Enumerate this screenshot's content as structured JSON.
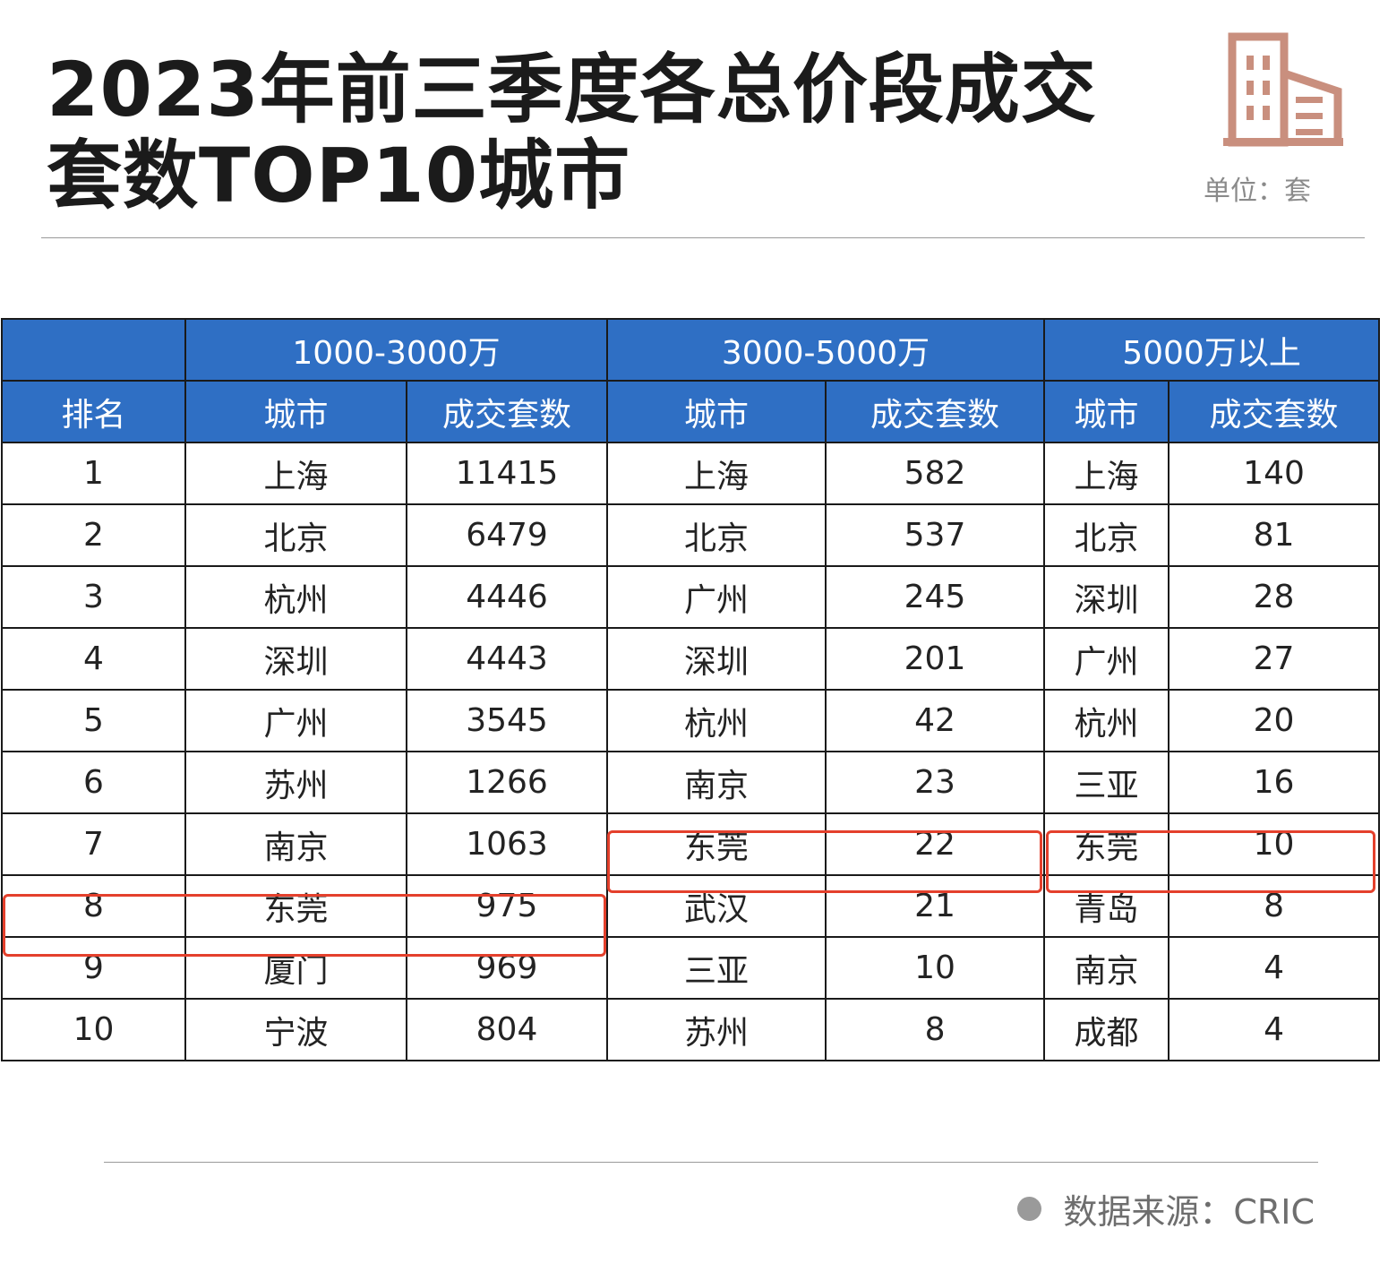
{
  "title": {
    "line1": "2023年前三季度各总价段成交",
    "line2": "套数TOP10城市"
  },
  "unit": "单位：套",
  "source": "数据来源：CRIC",
  "colors": {
    "header_bg": "#2f6fc4",
    "header_text": "#ffffff",
    "highlight": "#e4402c",
    "icon": "#c98f7e"
  },
  "icon": "building-icon",
  "table": {
    "groups": [
      "1000-3000万",
      "3000-5000万",
      "5000万以上"
    ],
    "rank_header": "排名",
    "city_header": "城市",
    "count_header": "成交套数",
    "rows": [
      {
        "rank": "1",
        "c1": "上海",
        "n1": "11415",
        "c2": "上海",
        "n2": "582",
        "c3": "上海",
        "n3": "140"
      },
      {
        "rank": "2",
        "c1": "北京",
        "n1": "6479",
        "c2": "北京",
        "n2": "537",
        "c3": "北京",
        "n3": "81"
      },
      {
        "rank": "3",
        "c1": "杭州",
        "n1": "4446",
        "c2": "广州",
        "n2": "245",
        "c3": "深圳",
        "n3": "28"
      },
      {
        "rank": "4",
        "c1": "深圳",
        "n1": "4443",
        "c2": "深圳",
        "n2": "201",
        "c3": "广州",
        "n3": "27"
      },
      {
        "rank": "5",
        "c1": "广州",
        "n1": "3545",
        "c2": "杭州",
        "n2": "42",
        "c3": "杭州",
        "n3": "20"
      },
      {
        "rank": "6",
        "c1": "苏州",
        "n1": "1266",
        "c2": "南京",
        "n2": "23",
        "c3": "三亚",
        "n3": "16"
      },
      {
        "rank": "7",
        "c1": "南京",
        "n1": "1063",
        "c2": "东莞",
        "n2": "22",
        "c3": "东莞",
        "n3": "10"
      },
      {
        "rank": "8",
        "c1": "东莞",
        "n1": "975",
        "c2": "武汉",
        "n2": "21",
        "c3": "青岛",
        "n3": "8"
      },
      {
        "rank": "9",
        "c1": "厦门",
        "n1": "969",
        "c2": "三亚",
        "n2": "10",
        "c3": "南京",
        "n3": "4"
      },
      {
        "rank": "10",
        "c1": "宁波",
        "n1": "804",
        "c2": "苏州",
        "n2": "8",
        "c3": "成都",
        "n3": "4"
      }
    ]
  }
}
